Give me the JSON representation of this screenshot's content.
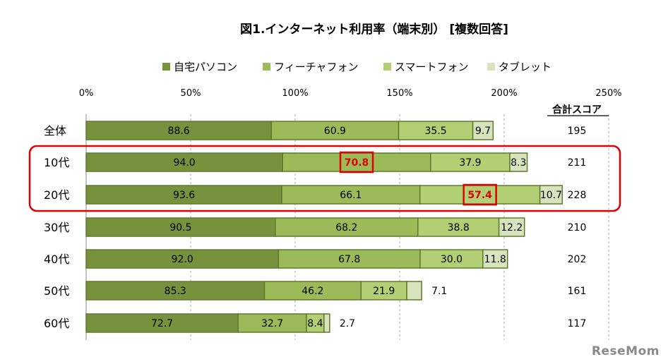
{
  "chart_data": {
    "type": "bar",
    "orientation": "horizontal",
    "stacked": true,
    "title": "図1.インターネット利用率（端末別） [複数回答]",
    "categories": [
      "全体",
      "10代",
      "20代",
      "30代",
      "40代",
      "50代",
      "60代"
    ],
    "series": [
      {
        "name": "自宅パソコン",
        "color": "#76923c",
        "values": [
          88.6,
          94.0,
          93.6,
          90.5,
          92.0,
          85.3,
          72.7
        ]
      },
      {
        "name": "フィーチャフォン",
        "color": "#9bbb59",
        "values": [
          60.9,
          70.8,
          66.1,
          68.2,
          67.8,
          46.2,
          32.7
        ]
      },
      {
        "name": "スマートフォン",
        "color": "#b2cf74",
        "values": [
          35.5,
          37.9,
          57.4,
          38.8,
          30.0,
          21.9,
          8.4
        ]
      },
      {
        "name": "タブレット",
        "color": "#d7e4bd",
        "values": [
          9.7,
          8.3,
          10.7,
          12.2,
          11.8,
          7.1,
          2.7
        ]
      }
    ],
    "totals_header": "合計スコア",
    "totals": [
      195,
      211,
      228,
      210,
      202,
      161,
      117
    ],
    "xlim": [
      0,
      250
    ],
    "xticks": [
      "0%",
      "50%",
      "100%",
      "150%",
      "200%",
      "250%"
    ],
    "highlighted_rows": [
      "10代",
      "20代"
    ],
    "highlighted_values": [
      {
        "category": "10代",
        "series": "フィーチャフォン"
      },
      {
        "category": "20代",
        "series": "スマートフォン"
      }
    ],
    "grid": true,
    "legend_position": "top"
  },
  "watermark": "ReseMom"
}
